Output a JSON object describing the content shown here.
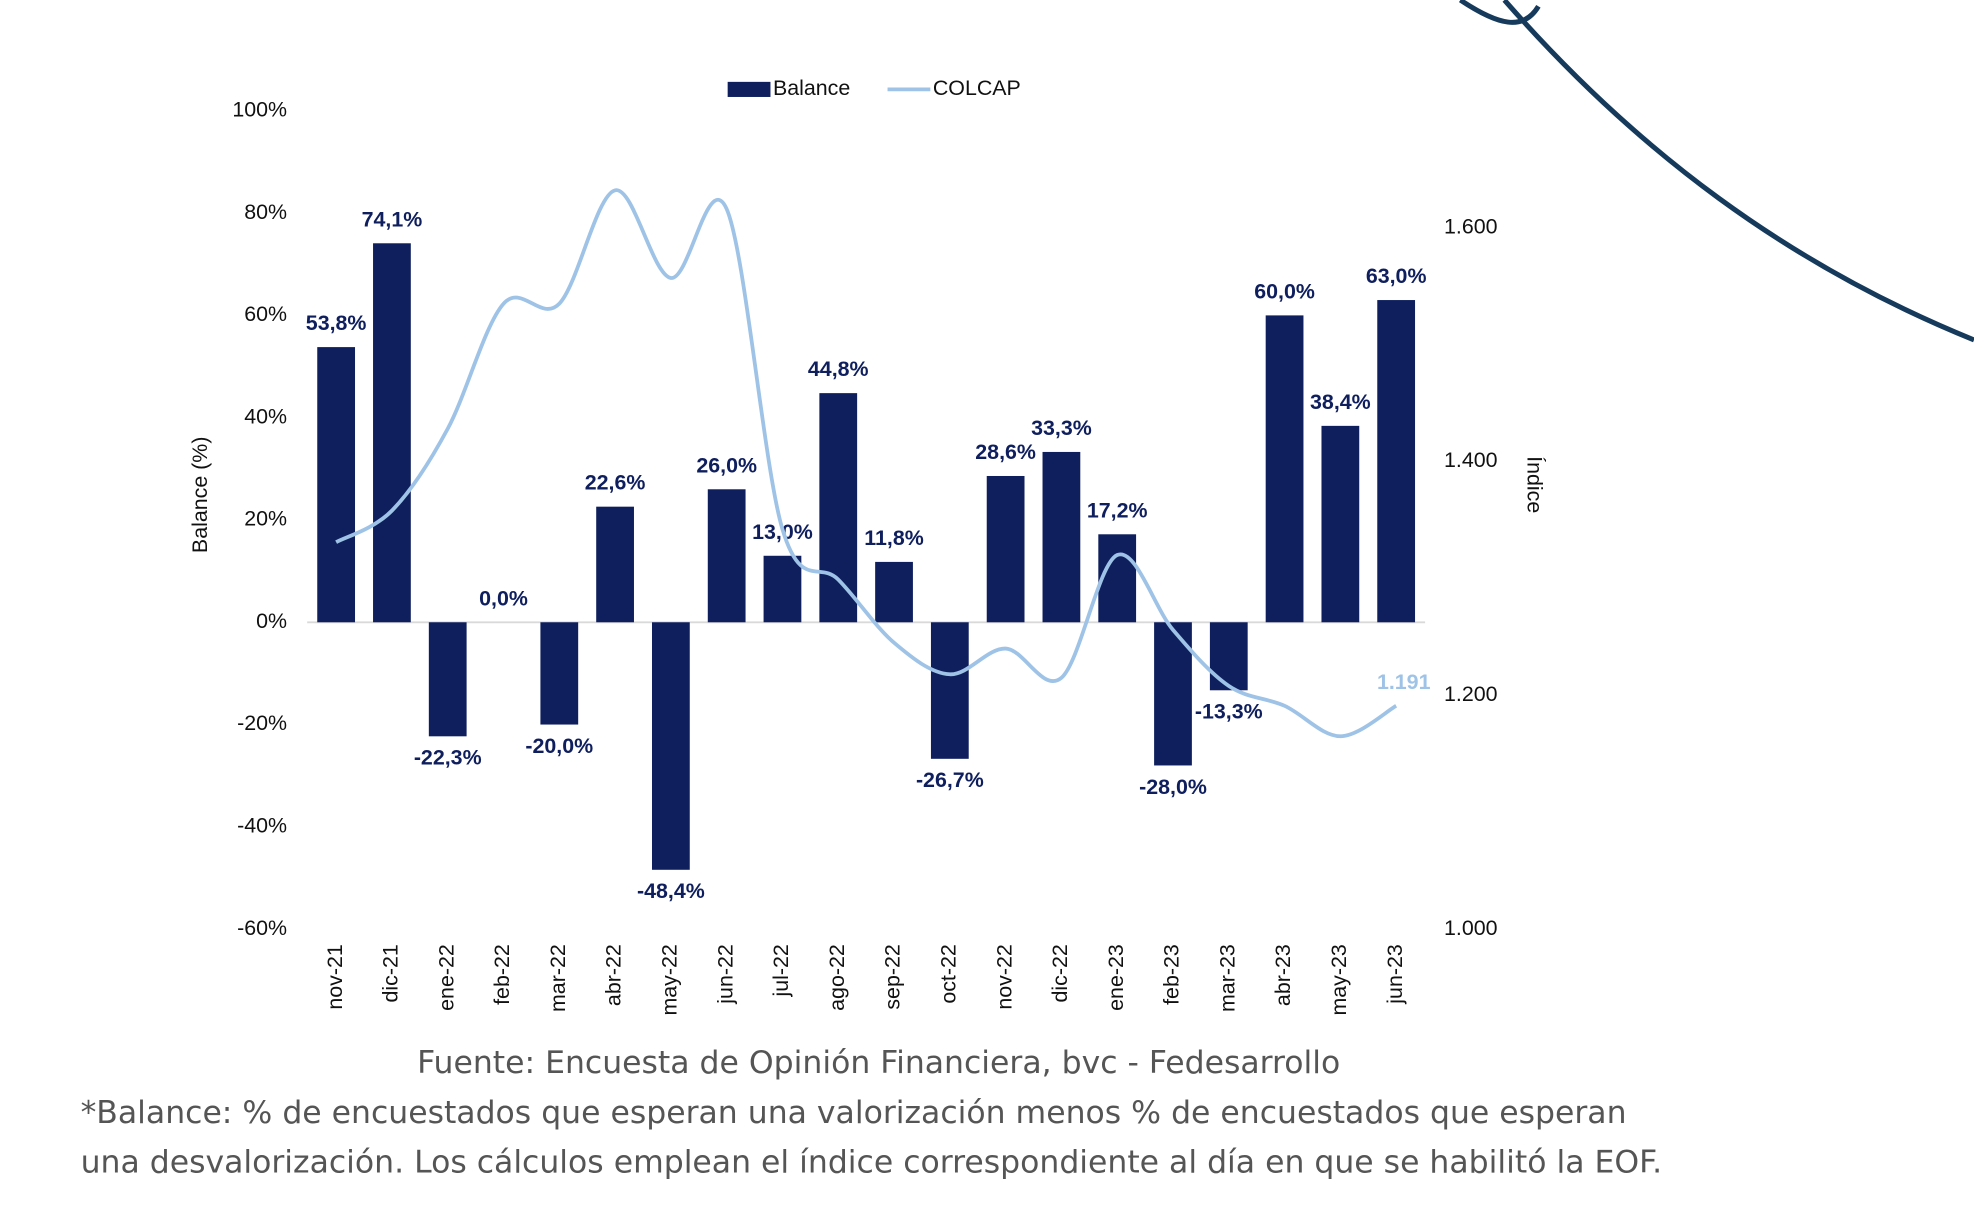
{
  "chart_data": {
    "type": "bar-line",
    "categories": [
      "nov-21",
      "dic-21",
      "ene-22",
      "feb-22",
      "mar-22",
      "abr-22",
      "may-22",
      "jun-22",
      "jul-22",
      "ago-22",
      "sep-22",
      "oct-22",
      "nov-22",
      "dic-22",
      "ene-23",
      "feb-23",
      "mar-23",
      "abr-23",
      "may-23",
      "jun-23"
    ],
    "series": [
      {
        "name": "Balance",
        "type": "bar",
        "color": "#0f1f5e",
        "values": [
          53.8,
          74.1,
          -22.3,
          0.0,
          -20.0,
          22.6,
          -48.4,
          26.0,
          13.0,
          44.8,
          11.8,
          -26.7,
          28.6,
          33.3,
          17.2,
          -28.0,
          -13.3,
          60.0,
          38.4,
          63.0
        ],
        "value_labels": [
          "53,8%",
          "74,1%",
          "-22,3%",
          "0,0%",
          "-20,0%",
          "22,6%",
          "-48,4%",
          "26,0%",
          "13,0%",
          "44,8%",
          "11,8%",
          "-26,7%",
          "28,6%",
          "33,3%",
          "17,2%",
          "-28,0%",
          "-13,3%",
          "60,0%",
          "38,4%",
          "63,0%"
        ]
      },
      {
        "name": "COLCAP",
        "type": "line",
        "color": "#9ec3e6",
        "axis": "y2",
        "values": [
          1331,
          1358,
          1428,
          1535,
          1535,
          1632,
          1557,
          1616,
          1342,
          1299,
          1245,
          1218,
          1240,
          1215,
          1320,
          1256,
          1208,
          1191,
          1165,
          1191
        ],
        "value_labels": [
          null,
          null,
          null,
          null,
          null,
          null,
          null,
          null,
          null,
          null,
          null,
          null,
          null,
          null,
          null,
          null,
          null,
          null,
          null,
          "1.191"
        ]
      }
    ],
    "y_label": "Balance (%)",
    "y2_label": "Índice",
    "ylim": [
      -60,
      100
    ],
    "yticks": [
      {
        "value": -60,
        "label": "-60%"
      },
      {
        "value": -40,
        "label": "-40%"
      },
      {
        "value": -20,
        "label": "-20%"
      },
      {
        "value": 0,
        "label": "0%"
      },
      {
        "value": 20,
        "label": "20%"
      },
      {
        "value": 40,
        "label": "40%"
      },
      {
        "value": 60,
        "label": "60%"
      },
      {
        "value": 80,
        "label": "80%"
      },
      {
        "value": 100,
        "label": "100%"
      }
    ],
    "y2lim": [
      1000,
      1700
    ],
    "y2ticks": [
      {
        "value": 1000,
        "label": "1.000"
      },
      {
        "value": 1200,
        "label": "1.200"
      },
      {
        "value": 1400,
        "label": "1.400"
      },
      {
        "value": 1600,
        "label": "1.600"
      }
    ],
    "source": "Fuente: Encuesta de Opinión Financiera, bvc - Fedesarrollo",
    "footnote": [
      "*Balance: % de encuestados que esperan una valorización menos % de encuestados que esperan",
      "una desvalorización. Los cálculos emplean el índice correspondiente al día en que se habilitó la EOF."
    ]
  }
}
